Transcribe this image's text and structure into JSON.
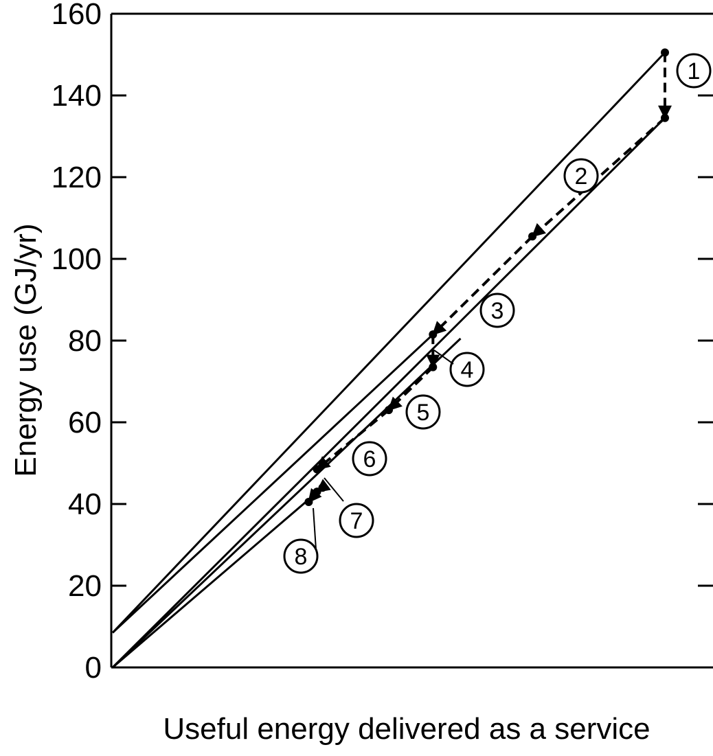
{
  "chart_data": {
    "type": "line",
    "title": "",
    "xlabel": "Useful energy delivered as a service",
    "ylabel": "Energy use (GJ/yr)",
    "ylim": [
      0,
      160
    ],
    "yticks": [
      "0",
      "20",
      "40",
      "60",
      "80",
      "100",
      "120",
      "140",
      "160"
    ],
    "xticks": [],
    "grid": false,
    "legend": "none",
    "series": [
      {
        "style": "solid",
        "points": [
          [
            0,
            8.5
          ],
          [
            100,
            150.5
          ]
        ]
      },
      {
        "style": "solid",
        "points": [
          [
            0,
            8.5
          ],
          [
            58,
            81.5
          ]
        ]
      },
      {
        "style": "solid",
        "points": [
          [
            0,
            0
          ],
          [
            100,
            134.5
          ]
        ]
      },
      {
        "style": "solid",
        "points": [
          [
            0,
            0
          ],
          [
            63,
            80.5
          ]
        ]
      },
      {
        "style": "solid",
        "points": [
          [
            0,
            0
          ],
          [
            38,
            44
          ]
        ]
      }
    ],
    "steps": [
      {
        "label": "1",
        "from": [
          100,
          150.5
        ],
        "to": [
          100,
          134.5
        ]
      },
      {
        "label": "2",
        "from": [
          100,
          134.5
        ],
        "to": [
          76,
          105.5
        ]
      },
      {
        "label": "3",
        "from": [
          76,
          105.5
        ],
        "to": [
          58,
          81.5
        ]
      },
      {
        "label": "4",
        "from": [
          58,
          81.5
        ],
        "to": [
          58,
          73.5
        ]
      },
      {
        "label": "5",
        "from": [
          58,
          73.5
        ],
        "to": [
          50,
          63
        ]
      },
      {
        "label": "6",
        "from": [
          50,
          63
        ],
        "to": [
          37,
          48.5
        ]
      },
      {
        "label": "7",
        "from": [
          38,
          44
        ],
        "to": [
          37,
          43
        ]
      },
      {
        "label": "8",
        "from": [
          37,
          43
        ],
        "to": [
          35.5,
          40.5
        ]
      }
    ],
    "annotations": [
      "1",
      "2",
      "3",
      "4",
      "5",
      "6",
      "7",
      "8"
    ]
  }
}
